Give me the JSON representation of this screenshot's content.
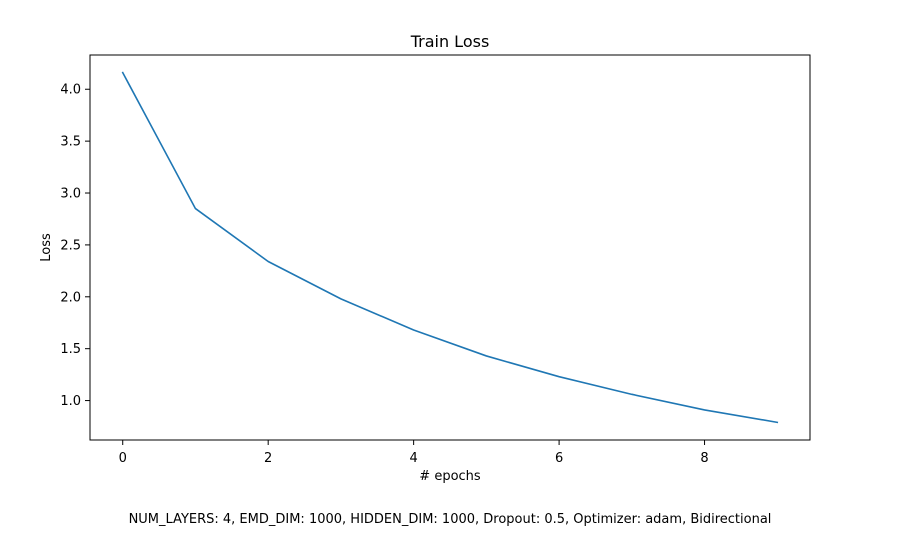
{
  "chart_data": {
    "type": "line",
    "title": "Train Loss",
    "xlabel": "# epochs",
    "ylabel": "Loss",
    "x": [
      0,
      1,
      2,
      3,
      4,
      5,
      6,
      7,
      8,
      9
    ],
    "series": [
      {
        "values": [
          4.16,
          2.85,
          2.34,
          1.98,
          1.68,
          1.43,
          1.23,
          1.06,
          0.91,
          0.79
        ],
        "color": "#1f77b4"
      }
    ],
    "xlim": [
      -0.45,
      9.45
    ],
    "ylim": [
      0.62,
      4.33
    ],
    "xticks": [
      0,
      2,
      4,
      6,
      8
    ],
    "xtick_labels": [
      "0",
      "2",
      "4",
      "6",
      "8"
    ],
    "yticks": [
      1.0,
      1.5,
      2.0,
      2.5,
      3.0,
      3.5,
      4.0
    ],
    "ytick_labels": [
      "1.0",
      "1.5",
      "2.0",
      "2.5",
      "3.0",
      "3.5",
      "4.0"
    ],
    "grid": false,
    "caption": "NUM_LAYERS: 4, EMD_DIM: 1000, HIDDEN_DIM: 1000, Dropout: 0.5, Optimizer: adam, Bidirectional"
  }
}
